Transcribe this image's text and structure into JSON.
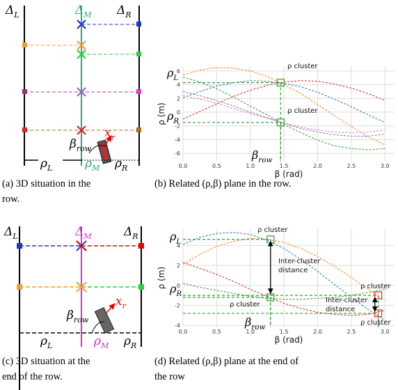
{
  "chart_data": [
    {
      "type": "line",
      "xlabel": "β (rad)",
      "ylabel": "ρ (m)",
      "x": [
        0,
        0.25,
        0.5,
        0.75,
        1.0,
        1.25,
        1.5,
        1.75,
        2.0,
        2.25,
        2.5,
        2.75,
        3.0
      ],
      "xlim": [
        0,
        3.1416
      ],
      "ylim": [
        -7.2,
        6.7
      ],
      "xticks": [
        {
          "value": 0,
          "label": "0.0"
        },
        0.5,
        {
          "value": 1,
          "label": "1.0"
        },
        1.5,
        {
          "value": 2,
          "label": "2.0"
        },
        2.5,
        {
          "value": 3,
          "label": "3.0"
        }
      ],
      "yticks": [
        -6,
        -4,
        -2,
        0,
        2,
        4,
        6
      ],
      "grid": true,
      "series": [
        {
          "color": "#ff7f0e",
          "values": [
            5.4,
            6.1,
            6.5,
            6.4,
            6.0,
            5.2,
            4.0,
            2.7,
            1.1,
            -0.5,
            -2.1,
            -3.6,
            -4.8
          ]
        },
        {
          "color": "#1f77b4",
          "values": [
            2.1,
            3.0,
            3.8,
            4.3,
            4.6,
            4.5,
            4.2,
            3.7,
            2.9,
            1.9,
            0.8,
            -0.4,
            -1.5
          ]
        },
        {
          "color": "#d62728",
          "values": [
            -1.0,
            0.1,
            1.2,
            2.3,
            3.2,
            3.9,
            4.4,
            4.6,
            4.5,
            4.1,
            3.5,
            2.7,
            1.7
          ]
        },
        {
          "color": "#2ca02c",
          "values": [
            5.1,
            4.4,
            3.4,
            2.2,
            0.9,
            -0.4,
            -1.8,
            -3.0,
            -4.1,
            -4.9,
            -5.3,
            -5.5,
            -5.3
          ]
        },
        {
          "color": "#e377c2",
          "values": [
            2.4,
            1.9,
            1.3,
            0.5,
            -0.2,
            -0.9,
            -1.6,
            -2.2,
            -2.6,
            -2.9,
            -3.0,
            -2.9,
            -2.6
          ]
        },
        {
          "color": "#9467bd",
          "values": [
            3.0,
            2.4,
            1.7,
            0.9,
            0.0,
            -0.8,
            -1.6,
            -2.4,
            -2.9,
            -3.3,
            -3.5,
            -3.5,
            -3.2
          ]
        }
      ],
      "annotations": [
        {
          "lines": [
            "ρ cluster"
          ]
        },
        {
          "lines": [
            "ρ cluster"
          ]
        }
      ],
      "labels": [
        {
          "main": "ρ",
          "sub": "L"
        },
        {
          "main": "ρ",
          "sub": "R"
        },
        {
          "main": "β",
          "sub": "row"
        }
      ]
    },
    {
      "type": "line",
      "xlabel": "β (rad)",
      "ylabel": "ρ (m)",
      "x": [
        0,
        0.25,
        0.5,
        0.75,
        1.0,
        1.25,
        1.5,
        1.75,
        2.0,
        2.25,
        2.5,
        2.75,
        3.0
      ],
      "xlim": [
        0,
        3.1416
      ],
      "ylim": [
        -4.2,
        5.7
      ],
      "xticks": [
        {
          "value": 0,
          "label": "0.0"
        },
        0.5,
        {
          "value": 1,
          "label": "1.0"
        },
        1.5,
        {
          "value": 2,
          "label": "2.0"
        },
        2.5,
        {
          "value": 3,
          "label": "3.0"
        }
      ],
      "yticks": [
        -4,
        -2,
        0,
        2,
        4
      ],
      "grid": true,
      "series": [
        {
          "color": "#1f77b4",
          "values": [
            4.1,
            4.8,
            5.2,
            5.3,
            5.1,
            4.5,
            3.7,
            2.6,
            1.4,
            0.1,
            -1.2,
            -2.4,
            -3.5
          ]
        },
        {
          "color": "#ff7f0e",
          "values": [
            2.1,
            3.1,
            3.9,
            4.4,
            4.7,
            4.6,
            4.3,
            3.7,
            2.9,
            1.9,
            0.8,
            -0.4,
            -1.5
          ]
        },
        {
          "color": "#d62728",
          "values": [
            2.3,
            1.7,
            1.1,
            0.4,
            -0.4,
            -1.1,
            -1.8,
            -2.3,
            -2.7,
            -2.9,
            -3.0,
            -2.9,
            -2.5
          ]
        },
        {
          "color": "#2ca02c",
          "values": [
            0.2,
            -0.2,
            -0.5,
            -0.8,
            -1.1,
            -1.3,
            -1.4,
            -1.4,
            -1.3,
            -1.2,
            -1.0,
            -0.7,
            -0.4
          ]
        }
      ],
      "annotations": [
        {
          "lines": [
            "ρ cluster"
          ]
        },
        {
          "lines": [
            "ρ cluster"
          ]
        },
        {
          "lines": [
            "ρ cluster"
          ]
        },
        {
          "lines": [
            "ρ cluster"
          ]
        },
        {
          "lines": [
            "Inter-cluster",
            "distance"
          ]
        },
        {
          "lines": [
            "Inter-cluster",
            "distance"
          ]
        }
      ],
      "labels": [
        {
          "main": "ρ",
          "sub": "L"
        },
        {
          "main": "ρ",
          "sub": "R"
        },
        {
          "main": "β",
          "sub": "row"
        }
      ]
    }
  ],
  "diagrams": {
    "a": {
      "labels": [
        {
          "main": "Δ",
          "sub": "L"
        },
        {
          "main": "Δ",
          "sub": "M"
        },
        {
          "main": "Δ",
          "sub": "R"
        },
        {
          "main": "β",
          "sub": "row"
        },
        {
          "main": "x",
          "sub": "r"
        },
        {
          "main": "ρ",
          "sub": "L"
        },
        {
          "main": "ρ",
          "sub": "M"
        },
        {
          "main": "ρ",
          "sub": "R"
        }
      ]
    },
    "c": {
      "labels": [
        {
          "main": "Δ",
          "sub": "L"
        },
        {
          "main": "Δ",
          "sub": "M"
        },
        {
          "main": "Δ",
          "sub": "R"
        },
        {
          "main": "β",
          "sub": "row"
        },
        {
          "main": "x",
          "sub": "r"
        },
        {
          "main": "ρ",
          "sub": "L"
        },
        {
          "main": "ρ",
          "sub": "M"
        },
        {
          "main": "ρ",
          "sub": "R"
        }
      ]
    }
  },
  "captions": {
    "a": [
      "(a) 3D situation in the",
      "row."
    ],
    "b": [
      "(b) Related (ρ,β) plane in the row."
    ],
    "c": [
      "(c) 3D situation at the",
      "end of the row."
    ],
    "d": [
      "(d) Related (ρ,β) plane at the end of",
      "the row"
    ]
  }
}
